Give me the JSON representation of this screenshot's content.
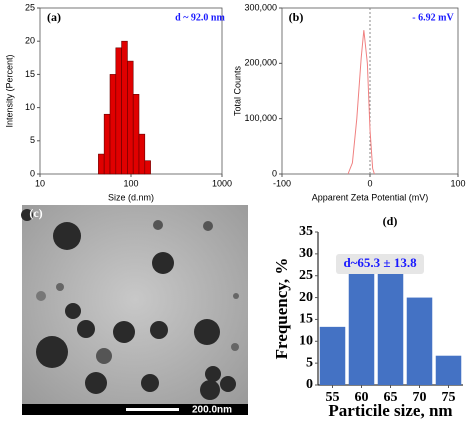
{
  "chart_data": [
    {
      "type": "histogram",
      "panel_label": "(a)",
      "annotation": "d ~ 92.0 nm",
      "x_label": "Size (d.nm)",
      "y_label": "Intensity (Percent)",
      "bins": [
        43.8,
        50.7,
        58.8,
        68.1,
        78.8,
        91.3,
        105.7,
        122.4,
        141.8,
        164.2
      ],
      "values": [
        3,
        9,
        15,
        19,
        20,
        17,
        12,
        6,
        2
      ],
      "color": "#e00000",
      "xscale": "log",
      "xlim": [
        10,
        1000
      ],
      "xticks": [
        10,
        100,
        1000
      ],
      "ylim": [
        0,
        25
      ],
      "yticks": [
        0,
        5,
        10,
        15,
        20,
        25
      ]
    },
    {
      "type": "line",
      "panel_label": "(b)",
      "annotation": "- 6.92 mV",
      "x_label": "Apparent Zeta Potential (mV)",
      "y_label": "Total Counts",
      "x": [
        -25,
        -20,
        -15,
        -10,
        -7,
        -3,
        0,
        3,
        5
      ],
      "values": [
        0,
        20000,
        100000,
        210000,
        260000,
        200000,
        80000,
        10000,
        0
      ],
      "color": "#f08080",
      "xlim": [
        -100,
        100
      ],
      "xticks": [
        -100,
        0,
        100
      ],
      "ylim": [
        0,
        300000
      ],
      "yticks": [
        0,
        {
          "value": 100000,
          "label": "100,000"
        },
        {
          "value": 200000,
          "label": "200,000"
        },
        {
          "value": 300000,
          "label": "300,000"
        }
      ]
    },
    {
      "type": "bar",
      "panel_label": "(d)",
      "annotation": "d~65.3 ± 13.8",
      "x_label": "Particile size, nm",
      "y_label": "Frequency, %",
      "x": [
        55,
        60,
        65,
        70,
        75
      ],
      "values": [
        13.3,
        26.7,
        26.7,
        20,
        6.7
      ],
      "color": "#4472c4",
      "xlim": [
        52.5,
        77.5
      ],
      "xticks": [
        55,
        60,
        65,
        70,
        75
      ],
      "ylim": [
        0,
        35
      ],
      "yticks": [
        0,
        5,
        10,
        15,
        20,
        25,
        30,
        35
      ]
    }
  ],
  "image_panel": {
    "panel_label": "(c)",
    "scale_bar": "200.0nm"
  }
}
